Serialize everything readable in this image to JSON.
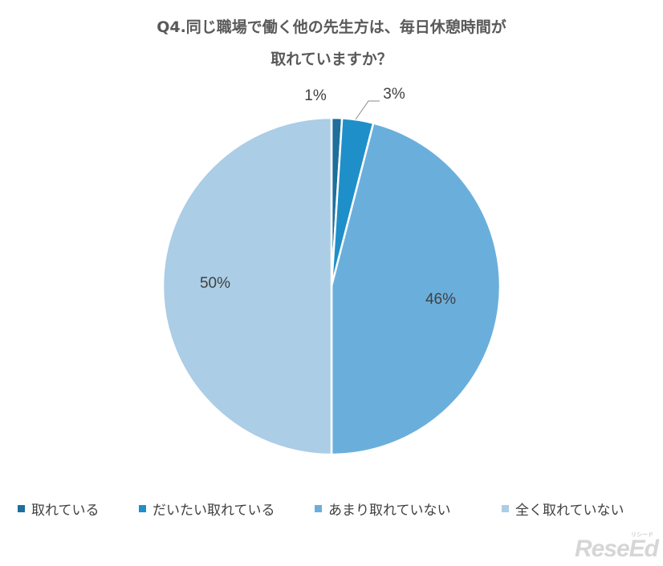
{
  "chart_data": {
    "type": "pie",
    "title_lines": [
      "Q4.同じ職場で働く他の先生方は、毎日休憩時間が",
      "取れていますか？"
    ],
    "categories": [
      "取れている",
      "だいたい取れている",
      "あまり取れていない",
      "全く取れていない"
    ],
    "values": [
      1,
      3,
      46,
      50
    ],
    "labels": [
      "1%",
      "3%",
      "46%",
      "50%"
    ],
    "colors": [
      "#1f6e9c",
      "#1f8fc9",
      "#6aafdc",
      "#abcde6"
    ],
    "legend_position": "bottom"
  },
  "watermark": {
    "text": "ReseEd",
    "small_text": "リシード"
  }
}
